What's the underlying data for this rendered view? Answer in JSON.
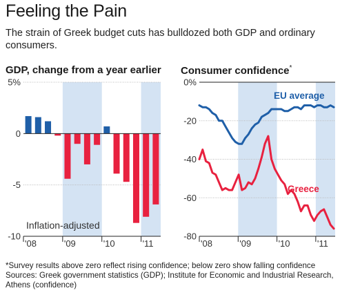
{
  "title": "Feeling the Pain",
  "subtitle": "The strain of Greek budget cuts has bulldozed both GDP and ordinary consumers.",
  "footnote_line1": "*Survey results above zero reflect rising confidence; below zero show falling confidence",
  "footnote_line2": "Sources: Greek government statistics (GDP); Institute for Economic and Industrial Research, Athens (confidence)",
  "colors": {
    "shade": "#d4e3f3",
    "positive_bar": "#1f5fa8",
    "negative_bar": "#e8213f",
    "eu_line": "#1f5fa8",
    "greece_line": "#e8213f"
  },
  "chart_data": [
    {
      "type": "bar",
      "title": "GDP, change from a year earlier",
      "unit_label": "%",
      "yticks": [
        "5%",
        "0",
        "-5",
        "-10"
      ],
      "ylim": [
        -10,
        5
      ],
      "xticks": [
        "'08",
        "'09",
        "'10",
        "'11"
      ],
      "annotation": "Inflation-adjusted",
      "categories": [
        "Q1 '08",
        "Q2 '08",
        "Q3 '08",
        "Q4 '08",
        "Q1 '09",
        "Q2 '09",
        "Q3 '09",
        "Q4 '09",
        "Q1 '10",
        "Q2 '10",
        "Q3 '10",
        "Q4 '10",
        "Q1 '11",
        "Q2 '11"
      ],
      "values": [
        1.7,
        1.6,
        1.2,
        -0.2,
        -4.4,
        -1.0,
        -3.0,
        -1.1,
        0.7,
        -3.9,
        -4.7,
        -8.7,
        -8.1,
        -6.9
      ],
      "shaded_years": [
        "'09",
        "'11"
      ],
      "grid": true
    },
    {
      "type": "line",
      "title": "Consumer confidence",
      "title_marker": "*",
      "yticks": [
        "0%",
        "-20",
        "-40",
        "-60",
        "-80"
      ],
      "ylim": [
        -80,
        0
      ],
      "xticks": [
        "'08",
        "'09",
        "'10",
        "'11"
      ],
      "x_start": "2008-01",
      "x_end": "2011-06",
      "shaded_years": [
        "'09",
        "'11"
      ],
      "grid": true,
      "series": [
        {
          "name": "EU average",
          "values": [
            -12,
            -13,
            -13,
            -14,
            -16,
            -17,
            -20,
            -20,
            -23,
            -26,
            -29,
            -31,
            -32,
            -32,
            -29,
            -27,
            -24,
            -22,
            -21,
            -18,
            -17,
            -16,
            -14,
            -14,
            -14,
            -14,
            -15,
            -15,
            -14,
            -13,
            -13,
            -14,
            -12,
            -12,
            -12,
            -13,
            -12,
            -12,
            -13,
            -13,
            -12,
            -13
          ]
        },
        {
          "name": "Greece",
          "values": [
            -40,
            -35,
            -41,
            -42,
            -47,
            -48,
            -52,
            -56,
            -55,
            -56,
            -56,
            -52,
            -48,
            -56,
            -55,
            -52,
            -53,
            -50,
            -45,
            -39,
            -32,
            -28,
            -40,
            -45,
            -48,
            -51,
            -53,
            -58,
            -56,
            -58,
            -62,
            -67,
            -64,
            -64,
            -69,
            -72,
            -69,
            -67,
            -66,
            -70,
            -74,
            -76
          ]
        }
      ]
    }
  ]
}
